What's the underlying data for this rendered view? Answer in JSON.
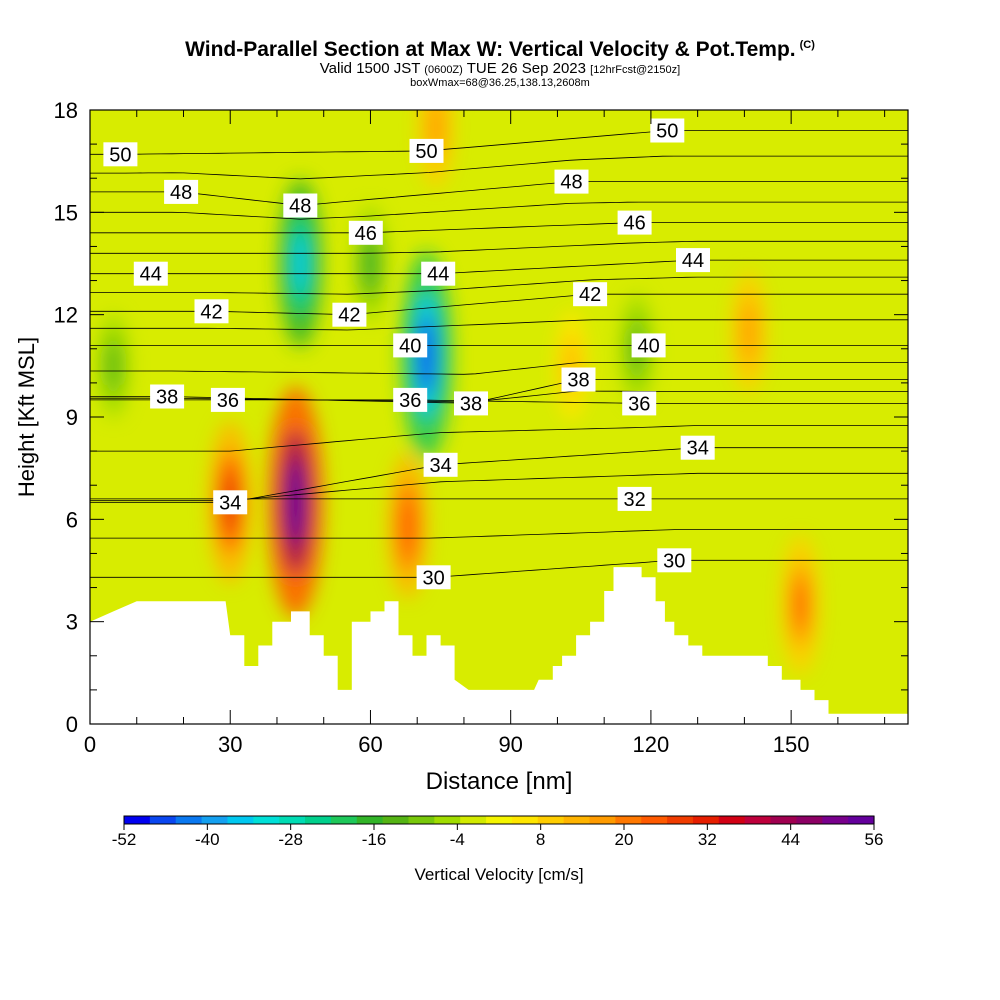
{
  "header": {
    "title": "Wind-Parallel Section at Max W: Vertical Velocity & Pot.Temp.",
    "title_mark": "(C)",
    "valid_prefix": "Valid 1500 JST",
    "valid_utc": "(0600Z)",
    "valid_date": "TUE 26 Sep 2023",
    "forecast_note": "[12hrFcst@2150z]",
    "box_info": "boxWmax=68@36.25,138.13,2608m"
  },
  "chart_data": {
    "type": "heatmap",
    "xlabel": "Distance [nm]",
    "ylabel": "Height [Kft MSL]",
    "xlim": [
      0,
      175
    ],
    "ylim": [
      0,
      18
    ],
    "x_ticks": [
      0,
      30,
      60,
      90,
      120,
      150
    ],
    "y_ticks": [
      0,
      3,
      6,
      9,
      12,
      15,
      18
    ],
    "grid": false,
    "colorbar": {
      "label": "Vertical Velocity [cm/s]",
      "placement": "bottom",
      "tick_labels": [
        -52,
        -40,
        -28,
        -16,
        -4,
        8,
        20,
        32,
        44,
        56
      ],
      "colors": [
        "#0000f0",
        "#0a46f0",
        "#0a78f0",
        "#14a0f0",
        "#00c8f0",
        "#00e0d8",
        "#00dcb4",
        "#00d08c",
        "#1ec85a",
        "#32b428",
        "#55b414",
        "#78c80a",
        "#a0dc00",
        "#d2ea00",
        "#f5f500",
        "#ffe600",
        "#ffcd00",
        "#ffb400",
        "#ff9b00",
        "#ff7800",
        "#ff5a00",
        "#f03c00",
        "#e61e00",
        "#d20014",
        "#be003c",
        "#a00050",
        "#8c0064",
        "#78008c",
        "#64009c"
      ]
    },
    "terrain_height_kft": [
      [
        0,
        3.0
      ],
      [
        5,
        3.3
      ],
      [
        10,
        3.6
      ],
      [
        15,
        3.6
      ],
      [
        20,
        3.6
      ],
      [
        25,
        3.6
      ],
      [
        29,
        3.6
      ],
      [
        30,
        2.6
      ],
      [
        33,
        2.6
      ],
      [
        33,
        1.7
      ],
      [
        36,
        1.7
      ],
      [
        36,
        2.3
      ],
      [
        39,
        2.3
      ],
      [
        39,
        3.0
      ],
      [
        43,
        3.0
      ],
      [
        43,
        3.3
      ],
      [
        47,
        3.3
      ],
      [
        47,
        2.6
      ],
      [
        50,
        2.6
      ],
      [
        50,
        2.0
      ],
      [
        53,
        2.0
      ],
      [
        53,
        1.0
      ],
      [
        56,
        1.0
      ],
      [
        56,
        3.0
      ],
      [
        60,
        3.0
      ],
      [
        60,
        3.3
      ],
      [
        63,
        3.3
      ],
      [
        63,
        3.6
      ],
      [
        66,
        3.6
      ],
      [
        66,
        2.6
      ],
      [
        69,
        2.6
      ],
      [
        69,
        2.0
      ],
      [
        72,
        2.0
      ],
      [
        72,
        2.6
      ],
      [
        75,
        2.6
      ],
      [
        75,
        2.3
      ],
      [
        78,
        2.3
      ],
      [
        78,
        1.3
      ],
      [
        81,
        1.0
      ],
      [
        95,
        1.0
      ],
      [
        96,
        1.3
      ],
      [
        99,
        1.3
      ],
      [
        99,
        1.7
      ],
      [
        101,
        1.7
      ],
      [
        101,
        2.0
      ],
      [
        104,
        2.0
      ],
      [
        104,
        2.6
      ],
      [
        107,
        2.6
      ],
      [
        107,
        3.0
      ],
      [
        110,
        3.0
      ],
      [
        110,
        3.9
      ],
      [
        112,
        3.9
      ],
      [
        112,
        4.6
      ],
      [
        118,
        4.6
      ],
      [
        118,
        4.3
      ],
      [
        121,
        4.3
      ],
      [
        121,
        3.6
      ],
      [
        123,
        3.6
      ],
      [
        123,
        3.0
      ],
      [
        125,
        3.0
      ],
      [
        125,
        2.6
      ],
      [
        128,
        2.6
      ],
      [
        128,
        2.3
      ],
      [
        131,
        2.3
      ],
      [
        131,
        2.0
      ],
      [
        145,
        2.0
      ],
      [
        145,
        1.7
      ],
      [
        148,
        1.7
      ],
      [
        148,
        1.3
      ],
      [
        152,
        1.3
      ],
      [
        152,
        1.0
      ],
      [
        155,
        1.0
      ],
      [
        155,
        0.7
      ],
      [
        158,
        0.7
      ],
      [
        158,
        0.3
      ],
      [
        175,
        0.3
      ]
    ],
    "w_maxima": [
      {
        "x": 30,
        "y": 6.5,
        "w": 32
      },
      {
        "x": 44,
        "y": 6.5,
        "w": 56
      },
      {
        "x": 68,
        "y": 5.8,
        "w": 26
      },
      {
        "x": 152,
        "y": 3.5,
        "w": 24
      },
      {
        "x": 74,
        "y": 17.5,
        "w": 18
      },
      {
        "x": 103,
        "y": 10.5,
        "w": 14
      },
      {
        "x": 141,
        "y": 11.5,
        "w": 18
      }
    ],
    "w_minima": [
      {
        "x": 72,
        "y": 10.8,
        "w": -48
      },
      {
        "x": 45,
        "y": 13.5,
        "w": -34
      },
      {
        "x": 60,
        "y": 13.5,
        "w": -16
      },
      {
        "x": 117,
        "y": 11.0,
        "w": -14
      },
      {
        "x": 5,
        "y": 10.5,
        "w": -12
      }
    ],
    "theta_contour_labels": [
      {
        "text": "50",
        "x": 6.5,
        "y": 16.7
      },
      {
        "text": "50",
        "x": 72,
        "y": 16.8
      },
      {
        "text": "50",
        "x": 123.5,
        "y": 17.4
      },
      {
        "text": "48",
        "x": 19.5,
        "y": 15.6
      },
      {
        "text": "48",
        "x": 45,
        "y": 15.2
      },
      {
        "text": "48",
        "x": 103,
        "y": 15.9
      },
      {
        "text": "46",
        "x": 59,
        "y": 14.4
      },
      {
        "text": "46",
        "x": 116.5,
        "y": 14.7
      },
      {
        "text": "44",
        "x": 13,
        "y": 13.2
      },
      {
        "text": "44",
        "x": 74.5,
        "y": 13.2
      },
      {
        "text": "44",
        "x": 129,
        "y": 13.6
      },
      {
        "text": "42",
        "x": 26,
        "y": 12.1
      },
      {
        "text": "42",
        "x": 55.5,
        "y": 12.0
      },
      {
        "text": "42",
        "x": 107,
        "y": 12.6
      },
      {
        "text": "40",
        "x": 68.5,
        "y": 11.1
      },
      {
        "text": "40",
        "x": 119.5,
        "y": 11.1
      },
      {
        "text": "38",
        "x": 16.5,
        "y": 9.6
      },
      {
        "text": "38",
        "x": 81.5,
        "y": 9.4
      },
      {
        "text": "38",
        "x": 104.5,
        "y": 10.1
      },
      {
        "text": "36",
        "x": 29.5,
        "y": 9.5
      },
      {
        "text": "36",
        "x": 68.5,
        "y": 9.5
      },
      {
        "text": "36",
        "x": 117.5,
        "y": 9.4
      },
      {
        "text": "34",
        "x": 30,
        "y": 6.5
      },
      {
        "text": "34",
        "x": 75,
        "y": 7.6
      },
      {
        "text": "34",
        "x": 130,
        "y": 8.1
      },
      {
        "text": "32",
        "x": 116.5,
        "y": 6.6
      },
      {
        "text": "30",
        "x": 73.5,
        "y": 4.3
      },
      {
        "text": "30",
        "x": 125,
        "y": 4.8
      }
    ]
  }
}
